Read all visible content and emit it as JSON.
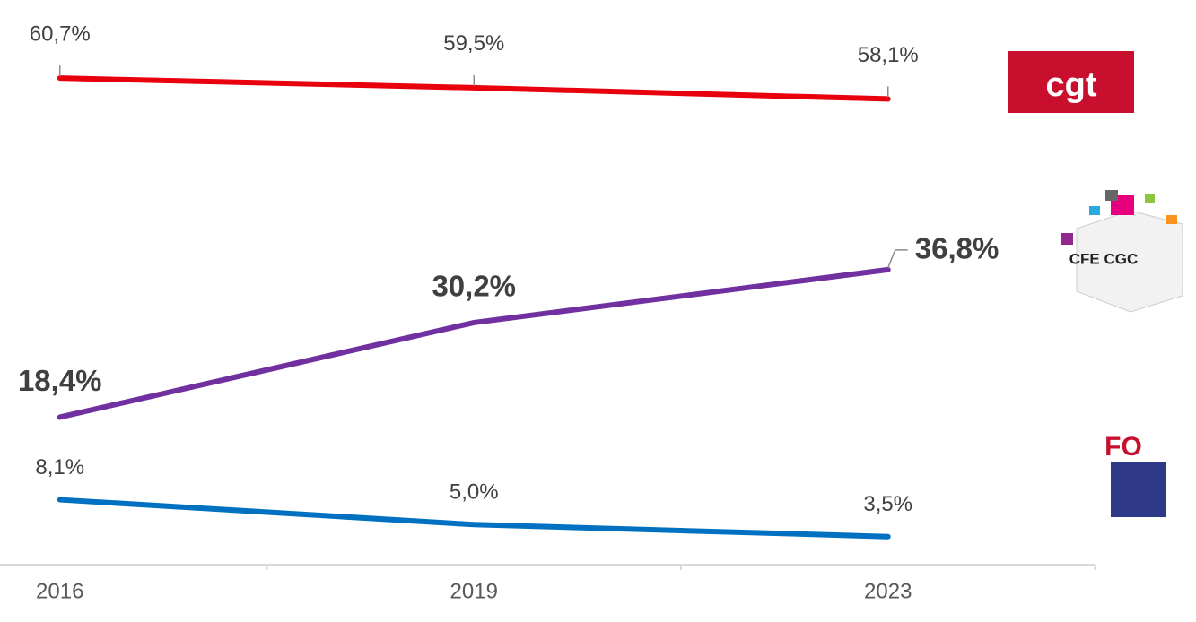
{
  "chart_data": {
    "type": "line",
    "categories": [
      "2016",
      "2019",
      "2023"
    ],
    "ylim": [
      0,
      70
    ],
    "series": [
      {
        "name": "cgt",
        "color": "#e8000d",
        "values": [
          60.7,
          59.5,
          58.1
        ],
        "value_labels": [
          "60,7%",
          "59,5%",
          "58,1%"
        ]
      },
      {
        "name": "CFE CGC",
        "color": "#7030a0",
        "values": [
          18.4,
          30.2,
          36.8
        ],
        "value_labels": [
          "18,4%",
          "30,2%",
          "36,8%"
        ]
      },
      {
        "name": "FO",
        "color": "#0070c0",
        "values": [
          8.1,
          5.0,
          3.5
        ],
        "value_labels": [
          "8,1%",
          "5,0%",
          "3,5%"
        ]
      }
    ]
  }
}
